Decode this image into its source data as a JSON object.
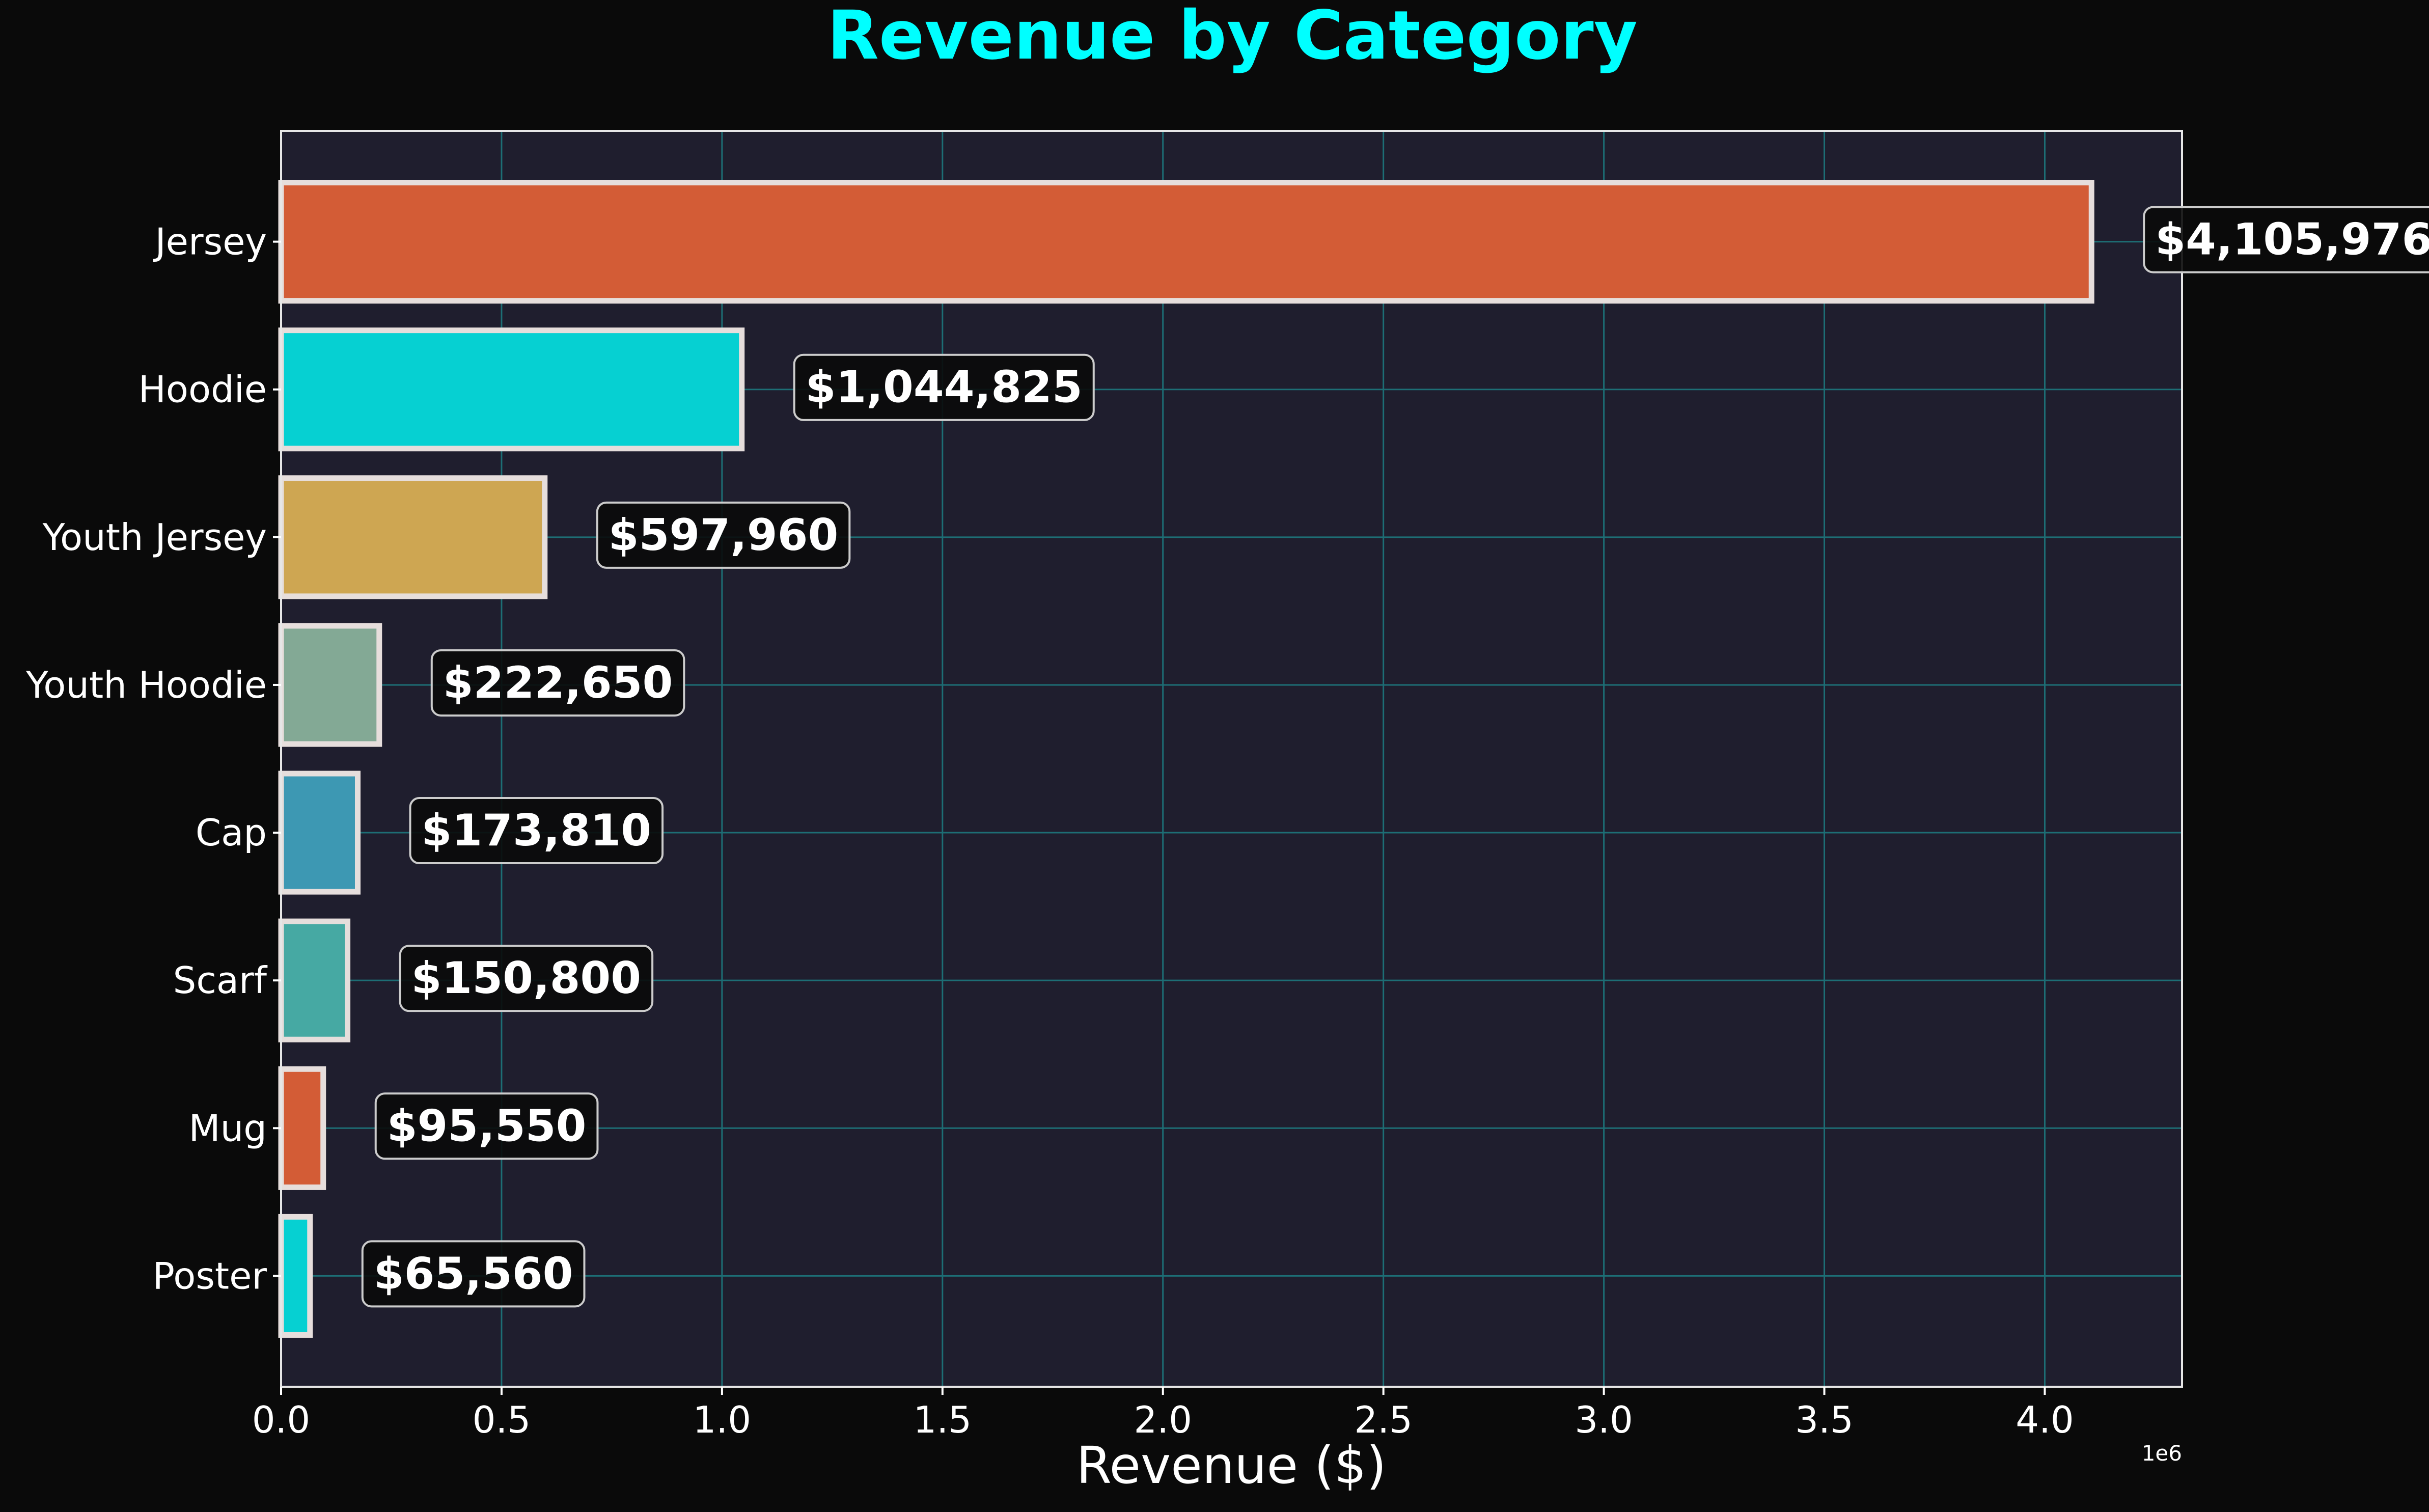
{
  "chart_data": {
    "type": "bar",
    "orientation": "horizontal",
    "title": "Revenue by Category",
    "xlabel": "Revenue ($)",
    "ylabel": "",
    "x_scale_label": "1e6",
    "xlim": [
      0,
      4311275
    ],
    "x_ticks": [
      0,
      500000,
      1000000,
      1500000,
      2000000,
      2500000,
      3000000,
      3500000,
      4000000
    ],
    "x_tick_labels": [
      "0.0",
      "0.5",
      "1.0",
      "1.5",
      "2.0",
      "2.5",
      "3.0",
      "3.5",
      "4.0"
    ],
    "grid": true,
    "categories": [
      "Jersey",
      "Hoodie",
      "Youth Jersey",
      "Youth Hoodie",
      "Cap",
      "Scarf",
      "Mug",
      "Poster"
    ],
    "values": [
      4105976,
      1044825,
      597960,
      222650,
      173810,
      150800,
      95550,
      65560
    ],
    "value_labels": [
      "$4,105,976",
      "$1,044,825",
      "$597,960",
      "$222,650",
      "$173,810",
      "$150,800",
      "$95,550",
      "$65,560"
    ],
    "colors": [
      "#d35c36",
      "#06d0d2",
      "#cea652",
      "#83a995",
      "#3d98b3",
      "#46a9a3",
      "#d35c36",
      "#06d0d2"
    ],
    "colors_theme": {
      "background": "#0a0a0a",
      "plot_background": "#1f1e2e",
      "title": "#00ffff",
      "grid": "#1d6e75",
      "bar_edge": "#e6dedc",
      "label_box": "#0a0a0a"
    }
  }
}
